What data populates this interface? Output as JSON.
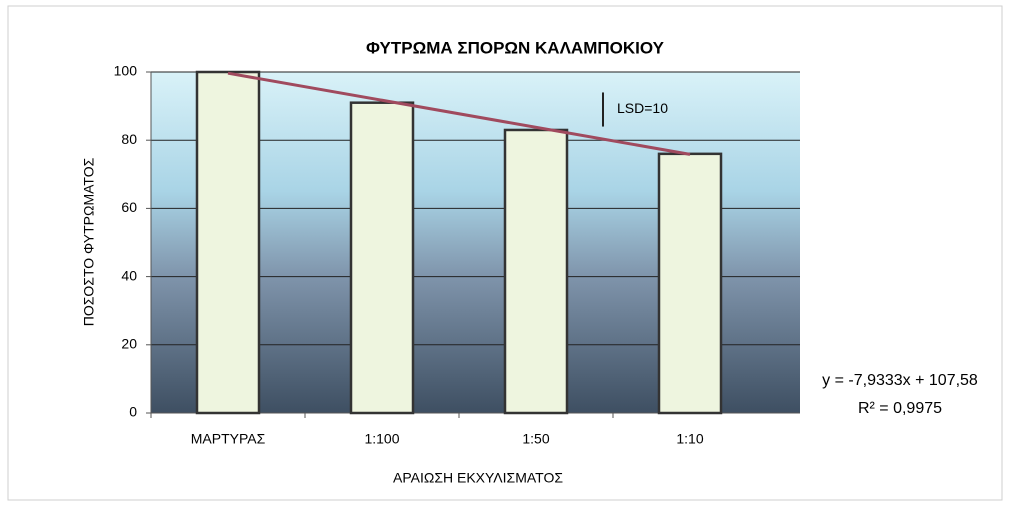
{
  "chart_data": {
    "type": "bar",
    "title": "ΦΥΤΡΩΜΑ ΣΠΟΡΩΝ ΚΑΛΑΜΠΟΚΙΟΥ",
    "x_label": "ΑΡΑΙΩΣΗ ΕΚΧΥΛΙΣΜΑΤΟΣ",
    "y_label": "ΠΟΣΟΣΤΟ ΦΥΤΡΩΜΑΤΟΣ",
    "categories": [
      "ΜΑΡΤΥΡΑΣ",
      "1:100",
      "1:50",
      "1:10"
    ],
    "values": [
      100,
      91,
      83,
      76
    ],
    "color": "#eef5df",
    "ylim": [
      0,
      100
    ],
    "yticks": [
      0,
      20,
      40,
      60,
      80,
      100
    ],
    "grid": true,
    "trendline": {
      "slope": -7.9333,
      "intercept": 107.58,
      "color": "#a04a5e",
      "equation": "y = -7,9333x + 107,58",
      "r_squared": "R² = 0,9975"
    },
    "lsd": {
      "value": 10,
      "label": "LSD=10"
    }
  }
}
